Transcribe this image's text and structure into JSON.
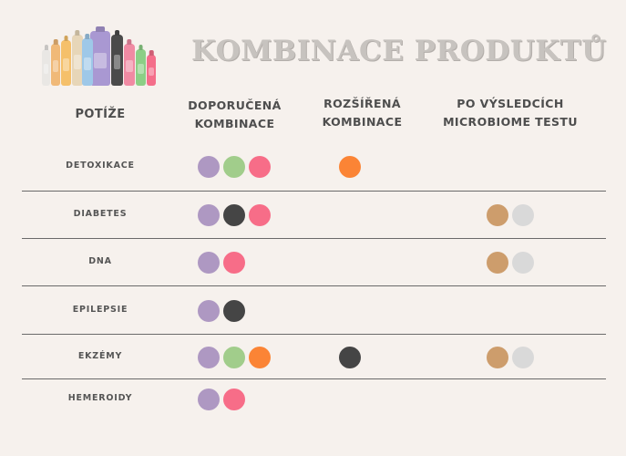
{
  "title": "KOMBINACE PRODUKTŮ",
  "colors": {
    "purple": "#ae98c2",
    "green": "#a1cd8b",
    "pink": "#f76d88",
    "orange": "#fb8435",
    "black": "#454545",
    "tan": "#cd9d6c",
    "lightgray": "#d9d9d9"
  },
  "headers": {
    "issues": "POTÍŽE",
    "recommended_line1": "DOPORUČENÁ",
    "recommended_line2": "KOMBINACE",
    "extended_line1": "ROZŠÍŘENÁ",
    "extended_line2": "KOMBINACE",
    "microbiome_line1": "PO VÝSLEDCÍCH",
    "microbiome_line2": "MICROBIOME TESTU"
  },
  "rows": [
    {
      "label": "DETOXIKACE",
      "recommended": [
        "purple",
        "green",
        "pink"
      ],
      "extended": [
        "orange"
      ],
      "microbiome": []
    },
    {
      "label": "DIABETES",
      "recommended": [
        "purple",
        "black",
        "pink"
      ],
      "extended": [],
      "microbiome": [
        "tan",
        "lightgray"
      ]
    },
    {
      "label": "DNA",
      "recommended": [
        "purple",
        "pink"
      ],
      "extended": [],
      "microbiome": [
        "tan",
        "lightgray"
      ]
    },
    {
      "label": "EPILEPSIE",
      "recommended": [
        "purple",
        "black"
      ],
      "extended": [],
      "microbiome": []
    },
    {
      "label": "EKZÉMY",
      "recommended": [
        "purple",
        "green",
        "orange"
      ],
      "extended": [
        "black"
      ],
      "microbiome": [
        "tan",
        "lightgray"
      ]
    },
    {
      "label": "HEMEROIDY",
      "recommended": [
        "purple",
        "pink"
      ],
      "extended": [],
      "microbiome": []
    }
  ]
}
